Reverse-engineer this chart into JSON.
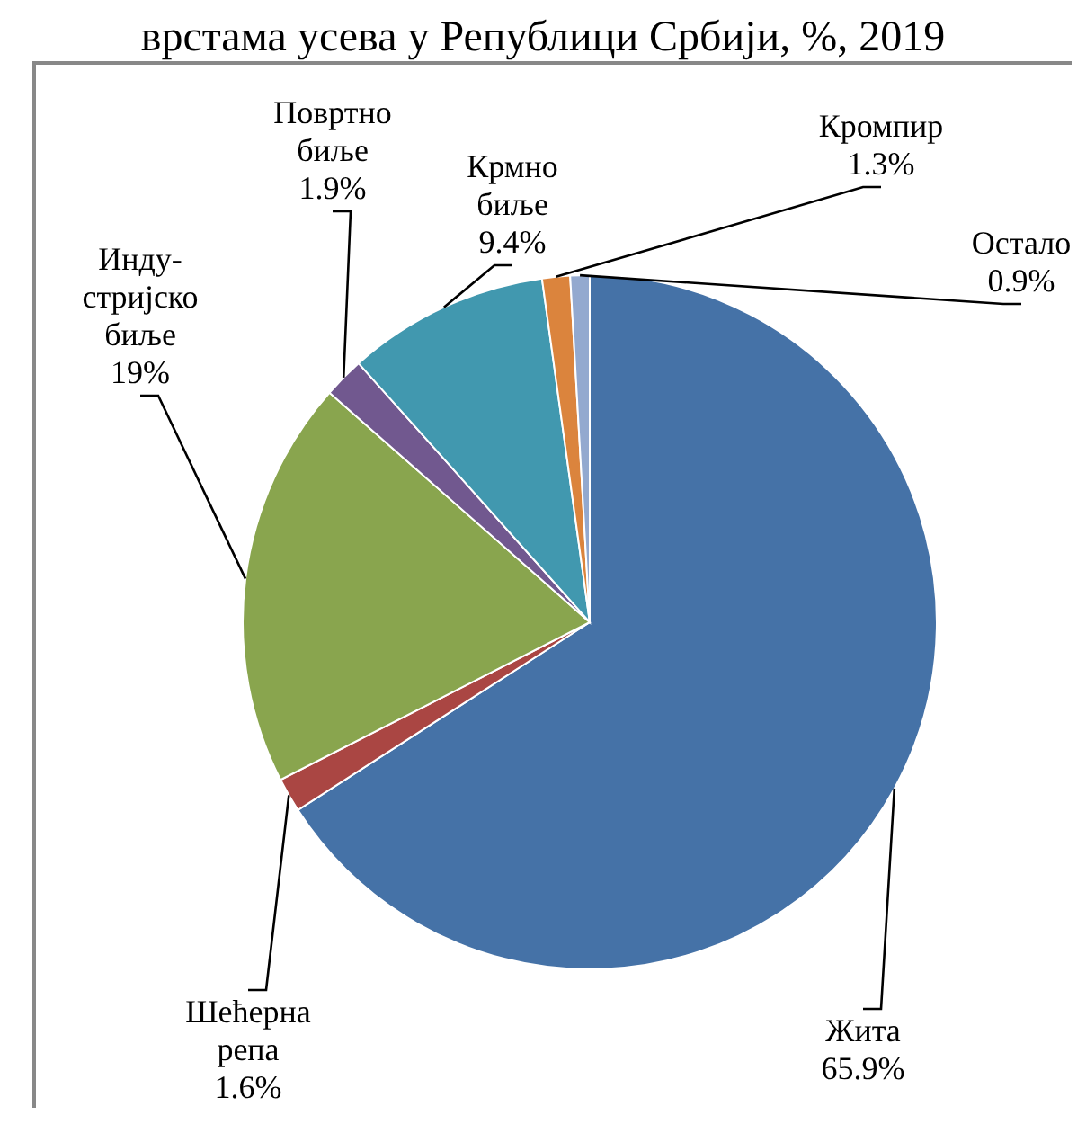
{
  "chart_data": {
    "type": "pie",
    "title": "врстама усева у Републици Србији, %, 2019",
    "categories": [
      "Жита",
      "Шећерна\nрепа",
      "Инду-\nстријско\nбиље",
      "Повртно\nбиље",
      "Крмно\nбиље",
      "Кромпир",
      "Остало"
    ],
    "values": [
      65.9,
      1.6,
      19,
      1.9,
      9.4,
      1.3,
      0.9
    ],
    "value_labels": [
      "65.9%",
      "1.6%",
      "19%",
      "1.9%",
      "9.4%",
      "1.3%",
      "0.9%"
    ],
    "colors": [
      "#4572a7",
      "#aa4643",
      "#89a54e",
      "#71588f",
      "#4198af",
      "#db843d",
      "#93a9cf"
    ],
    "legend": false
  }
}
